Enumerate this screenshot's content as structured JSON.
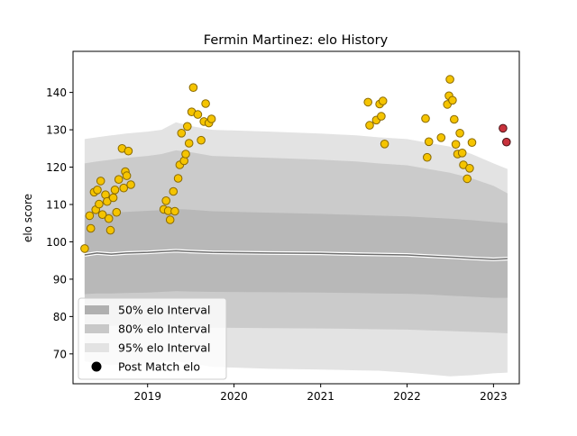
{
  "chart_data": {
    "type": "scatter",
    "title": "Fermin Martinez: elo History",
    "xlabel": "",
    "ylabel": "elo score",
    "xlim": [
      "2018-02-20",
      "2023-04-20"
    ],
    "ylim": [
      62,
      151
    ],
    "x_ticks": [
      "2019",
      "2020",
      "2021",
      "2022",
      "2023"
    ],
    "y_ticks": [
      70,
      80,
      90,
      100,
      110,
      120,
      130,
      140
    ],
    "grid": false,
    "legend": {
      "placement": "lower-left",
      "entries": [
        {
          "label": "50% elo Interval",
          "color": "#b0b0b0"
        },
        {
          "label": "80% elo Interval",
          "color": "#c8c8c8"
        },
        {
          "label": "95% elo Interval",
          "color": "#e3e3e3"
        },
        {
          "label": "Post Match elo",
          "color": "#000000"
        }
      ]
    },
    "colors": {
      "band95": "#e3e3e3",
      "band80": "#cbcbcb",
      "band50": "#b8b8b8",
      "median_line": "#6e6e6e",
      "median_highlight": "#ffffff",
      "points_fill": "#f5c400",
      "points_edge": "#8a6a00",
      "recent_fill": "#c8323c",
      "recent_edge": "#4a1418"
    },
    "bands": {
      "x": [
        "2018-04-10",
        "2018-06-01",
        "2018-08-01",
        "2018-10-01",
        "2019-01-01",
        "2019-03-01",
        "2019-05-01",
        "2019-07-01",
        "2019-10-01",
        "2020-06-01",
        "2021-01-01",
        "2021-06-01",
        "2021-09-01",
        "2022-01-01",
        "2022-04-01",
        "2022-07-01",
        "2022-10-01",
        "2023-01-01",
        "2023-03-01"
      ],
      "median": [
        96.5,
        97.0,
        96.7,
        97.0,
        97.2,
        97.4,
        97.6,
        97.4,
        97.2,
        97.0,
        96.9,
        96.7,
        96.6,
        96.5,
        96.2,
        95.9,
        95.6,
        95.3,
        95.5
      ],
      "p50_low": [
        86.0,
        86.2,
        86.2,
        86.3,
        86.4,
        86.6,
        86.8,
        86.7,
        86.6,
        86.5,
        86.4,
        86.3,
        86.2,
        86.1,
        85.9,
        85.6,
        85.3,
        85.0,
        85.0
      ],
      "p50_high": [
        107.0,
        107.5,
        107.8,
        108.0,
        108.3,
        108.5,
        108.8,
        108.6,
        108.2,
        107.8,
        107.5,
        107.2,
        107.0,
        106.8,
        106.5,
        106.2,
        105.8,
        105.3,
        105.0
      ],
      "p80_low": [
        77.0,
        77.3,
        77.5,
        77.6,
        77.5,
        77.4,
        77.2,
        77.1,
        77.0,
        76.9,
        76.8,
        76.7,
        76.6,
        76.5,
        76.3,
        76.1,
        75.9,
        75.7,
        75.5
      ],
      "p80_high": [
        121.0,
        121.5,
        122.0,
        122.5,
        123.0,
        123.5,
        124.5,
        124.0,
        123.0,
        122.5,
        122.0,
        121.5,
        121.0,
        120.5,
        119.5,
        118.5,
        117.0,
        115.0,
        113.0
      ],
      "p95_low": [
        68.0,
        67.5,
        67.0,
        67.2,
        67.5,
        67.8,
        68.0,
        67.5,
        66.5,
        66.0,
        65.8,
        65.6,
        65.5,
        65.0,
        64.5,
        64.0,
        64.3,
        64.8,
        65.0
      ],
      "p95_high": [
        127.5,
        128.0,
        128.5,
        129.0,
        129.5,
        130.0,
        132.0,
        131.0,
        130.0,
        129.5,
        129.0,
        128.5,
        128.0,
        127.5,
        126.5,
        125.5,
        123.5,
        121.0,
        119.5
      ]
    },
    "series": [
      {
        "name": "Post Match elo",
        "points": [
          {
            "x": "2018-04-10",
            "y": 98.2
          },
          {
            "x": "2018-05-01",
            "y": 107.0
          },
          {
            "x": "2018-05-06",
            "y": 103.6
          },
          {
            "x": "2018-05-20",
            "y": 113.3
          },
          {
            "x": "2018-05-27",
            "y": 108.6
          },
          {
            "x": "2018-06-03",
            "y": 113.9
          },
          {
            "x": "2018-06-10",
            "y": 110.1
          },
          {
            "x": "2018-06-17",
            "y": 116.3
          },
          {
            "x": "2018-06-24",
            "y": 107.3
          },
          {
            "x": "2018-07-07",
            "y": 112.6
          },
          {
            "x": "2018-07-14",
            "y": 110.8
          },
          {
            "x": "2018-07-21",
            "y": 106.2
          },
          {
            "x": "2018-07-28",
            "y": 103.1
          },
          {
            "x": "2018-08-09",
            "y": 111.8
          },
          {
            "x": "2018-08-16",
            "y": 113.9
          },
          {
            "x": "2018-08-23",
            "y": 107.9
          },
          {
            "x": "2018-09-01",
            "y": 116.7
          },
          {
            "x": "2018-09-15",
            "y": 125.0
          },
          {
            "x": "2018-09-22",
            "y": 114.4
          },
          {
            "x": "2018-09-29",
            "y": 118.8
          },
          {
            "x": "2018-10-05",
            "y": 117.7
          },
          {
            "x": "2018-10-12",
            "y": 124.3
          },
          {
            "x": "2018-10-22",
            "y": 115.3
          },
          {
            "x": "2019-03-10",
            "y": 108.7
          },
          {
            "x": "2019-03-20",
            "y": 111.0
          },
          {
            "x": "2019-03-29",
            "y": 108.3
          },
          {
            "x": "2019-04-06",
            "y": 105.9
          },
          {
            "x": "2019-04-20",
            "y": 113.5
          },
          {
            "x": "2019-04-26",
            "y": 108.2
          },
          {
            "x": "2019-05-10",
            "y": 117.0
          },
          {
            "x": "2019-05-17",
            "y": 120.6
          },
          {
            "x": "2019-05-24",
            "y": 129.1
          },
          {
            "x": "2019-06-04",
            "y": 121.7
          },
          {
            "x": "2019-06-11",
            "y": 123.5
          },
          {
            "x": "2019-06-18",
            "y": 130.9
          },
          {
            "x": "2019-06-25",
            "y": 126.4
          },
          {
            "x": "2019-07-06",
            "y": 134.8
          },
          {
            "x": "2019-07-13",
            "y": 141.3
          },
          {
            "x": "2019-08-01",
            "y": 134.1
          },
          {
            "x": "2019-08-15",
            "y": 127.2
          },
          {
            "x": "2019-08-27",
            "y": 132.2
          },
          {
            "x": "2019-09-03",
            "y": 137.0
          },
          {
            "x": "2019-09-17",
            "y": 131.8
          },
          {
            "x": "2019-09-28",
            "y": 132.9
          },
          {
            "x": "2021-07-20",
            "y": 137.4
          },
          {
            "x": "2021-07-27",
            "y": 131.2
          },
          {
            "x": "2021-08-24",
            "y": 132.6
          },
          {
            "x": "2021-09-07",
            "y": 136.9
          },
          {
            "x": "2021-09-14",
            "y": 133.6
          },
          {
            "x": "2021-09-21",
            "y": 137.7
          },
          {
            "x": "2021-09-28",
            "y": 126.2
          },
          {
            "x": "2022-03-20",
            "y": 133.0
          },
          {
            "x": "2022-03-27",
            "y": 122.6
          },
          {
            "x": "2022-04-03",
            "y": 126.8
          },
          {
            "x": "2022-05-25",
            "y": 127.9
          },
          {
            "x": "2022-06-20",
            "y": 136.8
          },
          {
            "x": "2022-06-27",
            "y": 139.1
          },
          {
            "x": "2022-07-01",
            "y": 143.5
          },
          {
            "x": "2022-07-12",
            "y": 137.9
          },
          {
            "x": "2022-07-19",
            "y": 132.8
          },
          {
            "x": "2022-07-26",
            "y": 126.1
          },
          {
            "x": "2022-08-02",
            "y": 123.5
          },
          {
            "x": "2022-08-12",
            "y": 129.1
          },
          {
            "x": "2022-08-22",
            "y": 123.8
          },
          {
            "x": "2022-08-27",
            "y": 120.6
          },
          {
            "x": "2022-09-12",
            "y": 116.9
          },
          {
            "x": "2022-09-22",
            "y": 119.7
          },
          {
            "x": "2022-10-02",
            "y": 126.6
          }
        ]
      },
      {
        "points": [
          {
            "x": "2023-02-10",
            "y": 130.4
          },
          {
            "x": "2023-02-25",
            "y": 126.7
          }
        ]
      }
    ]
  }
}
